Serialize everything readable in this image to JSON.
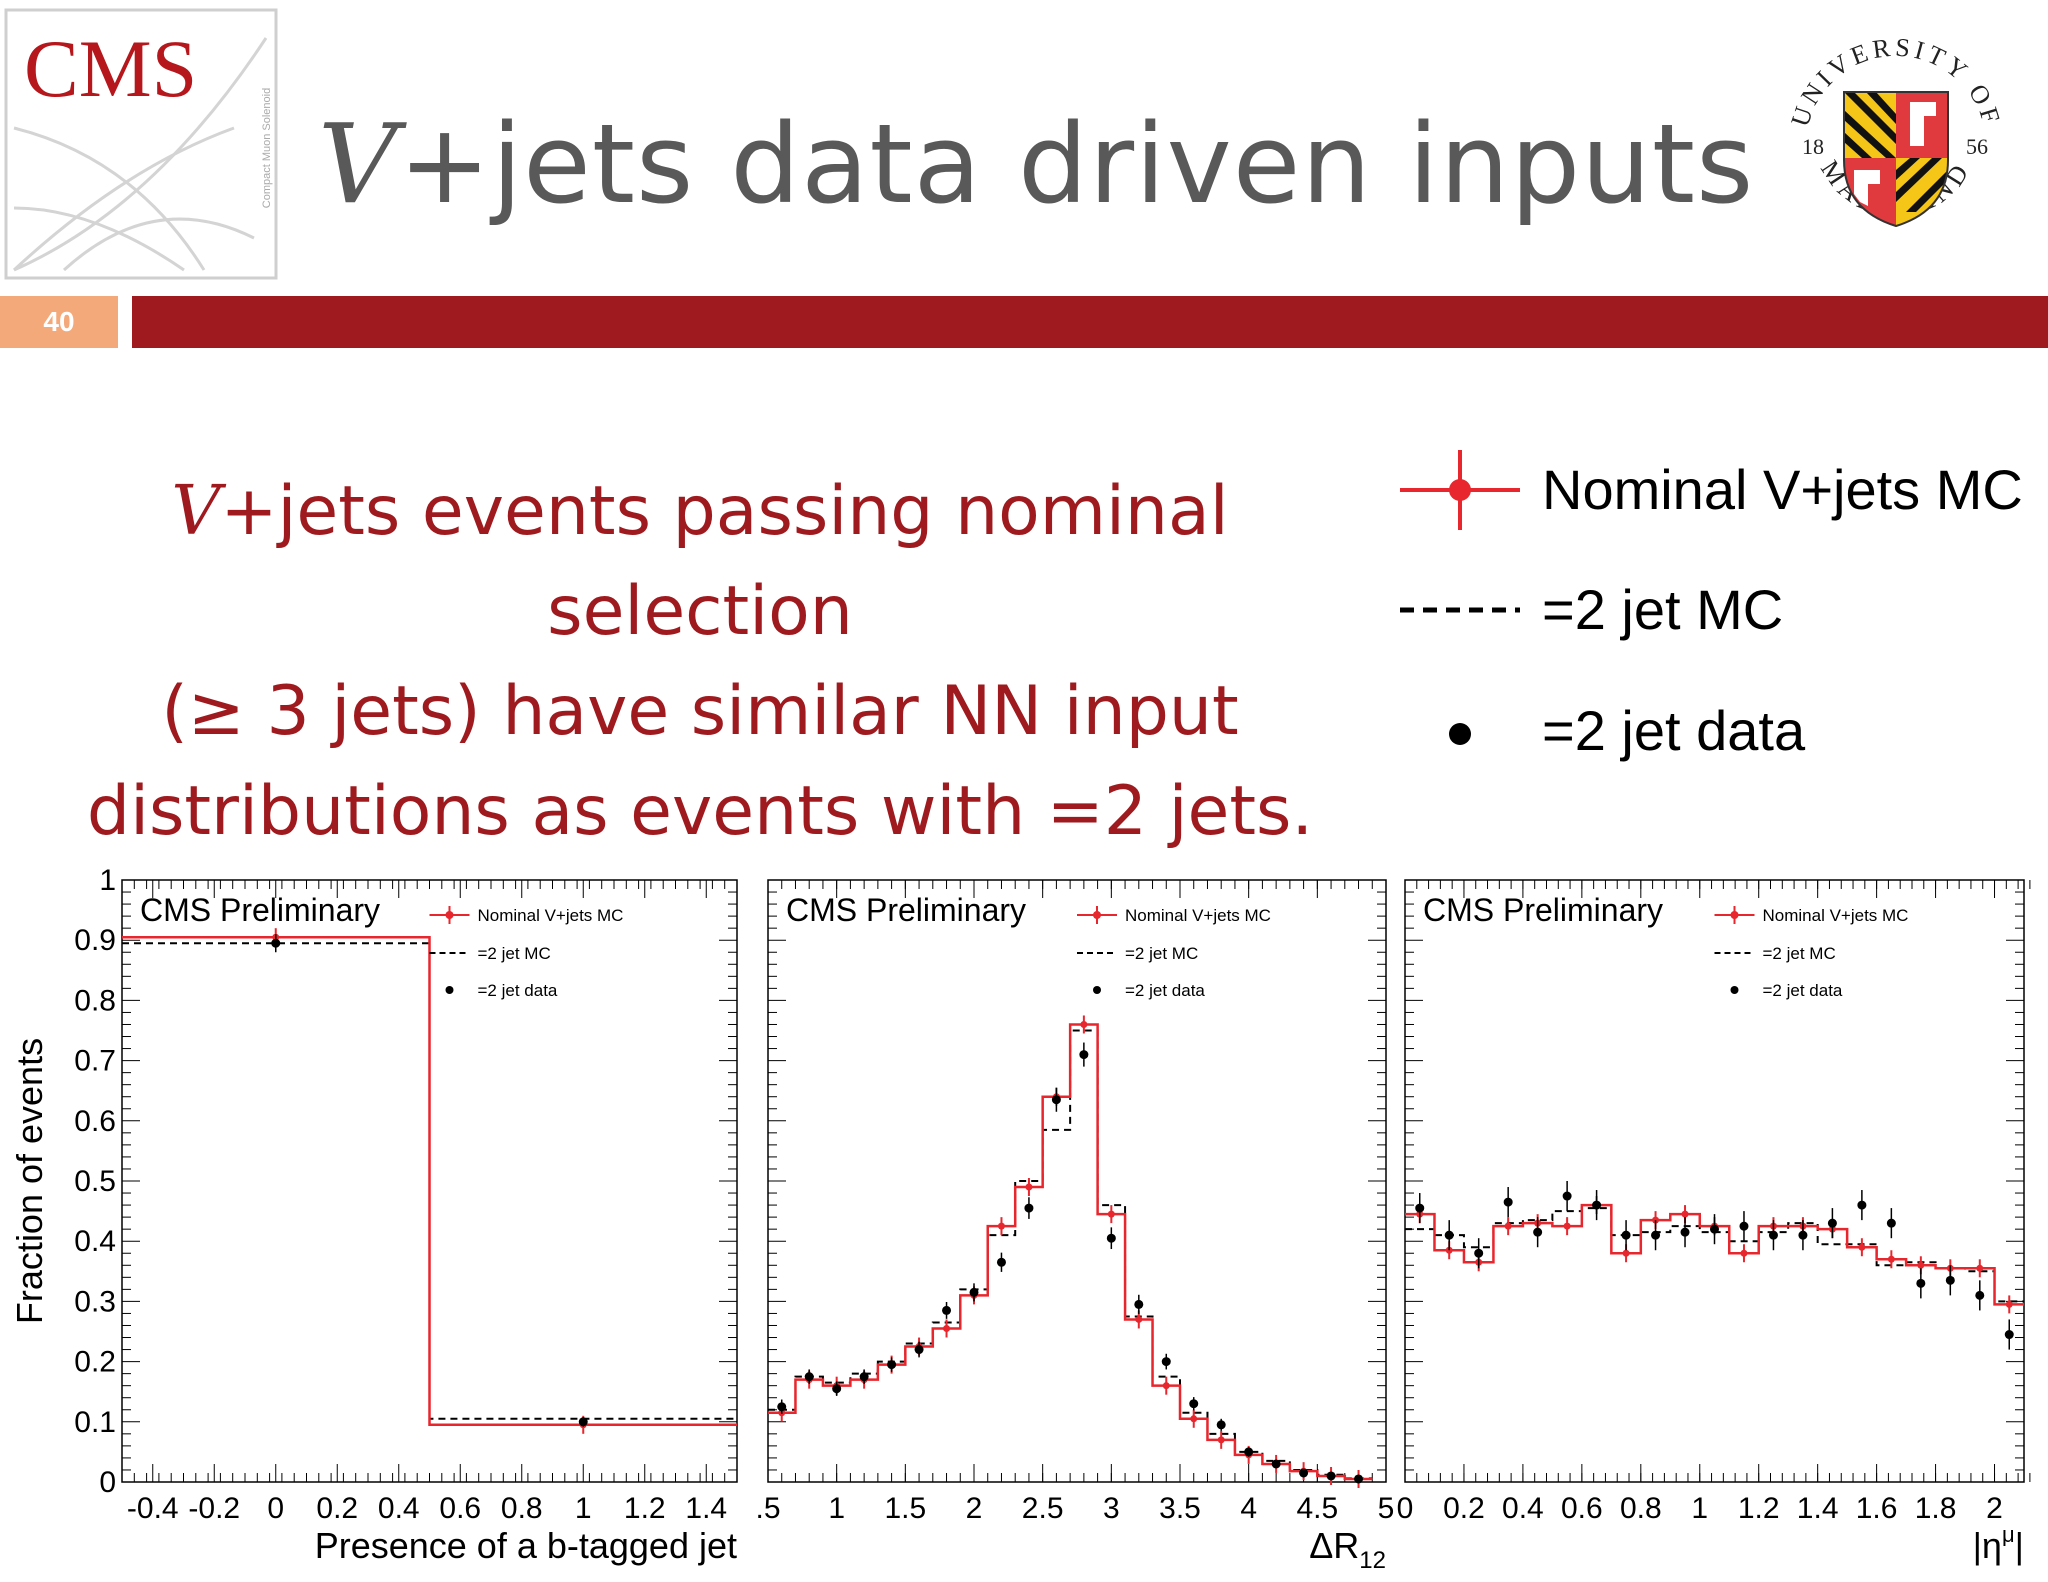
{
  "header": {
    "cms_logo_text": "CMS",
    "cms_logo_subtext": "Compact Muon Solenoid",
    "title_v": "V",
    "title_rest": "+jets data driven inputs",
    "slide_number": "40",
    "seal": {
      "top": "UNIVERSITY OF",
      "bottom": "MARYLAND",
      "year_left": "18",
      "year_right": "56"
    }
  },
  "summary": {
    "line1_v": "V",
    "line1_rest": "+jets events passing nominal selection",
    "line2": "(≥ 3 jets) have similar NN input",
    "line3": "distributions as events with =2 jets."
  },
  "big_legend": {
    "nominal": "Nominal V+jets MC",
    "dashed": "=2 jet MC",
    "data": "=2 jet data"
  },
  "colors": {
    "accent": "#9e1a1e",
    "slide_num_bg": "#f4a97a",
    "nominal": "#e8262d",
    "mc2": "#000000",
    "data": "#000000"
  },
  "chart_data": [
    {
      "type": "bar",
      "label": "CMS Preliminary",
      "xlabel": "Presence of a b-tagged jet",
      "ylabel": "Fraction of events",
      "xlim": [
        -0.5,
        1.5
      ],
      "ylim": [
        0,
        1
      ],
      "xticks": [
        "-0.4",
        "-0.2",
        "0",
        "0.2",
        "0.4",
        "0.6",
        "0.8",
        "1",
        "1.2",
        "1.4"
      ],
      "yticks": [
        "0",
        "0.1",
        "0.2",
        "0.3",
        "0.4",
        "0.5",
        "0.6",
        "0.7",
        "0.8",
        "0.9",
        "1"
      ],
      "legend": [
        "Nominal V+jets MC",
        "=2 jet MC",
        "=2 jet data"
      ],
      "bins": [
        -0.5,
        0.5,
        1.5
      ],
      "nominal": [
        0.905,
        0.095
      ],
      "mc2": [
        0.895,
        0.105
      ],
      "data_x": [
        0,
        1
      ],
      "data": [
        0.895,
        0.1
      ],
      "data_err": [
        0.015,
        0.008
      ]
    },
    {
      "type": "bar",
      "label": "CMS Preliminary",
      "xlabel": "ΔR",
      "xlabel_sub": "12",
      "xlim": [
        0.5,
        5
      ],
      "xticks": [
        ".5",
        "1",
        "1.5",
        "2",
        "2.5",
        "3",
        "3.5",
        "4",
        "4.5",
        "5"
      ],
      "legend": [
        "Nominal V+jets MC",
        "=2 jet MC",
        "=2 jet data"
      ],
      "bins": [
        0.5,
        0.7,
        0.9,
        1.1,
        1.3,
        1.5,
        1.7,
        1.9,
        2.1,
        2.3,
        2.5,
        2.7,
        2.9,
        3.1,
        3.3,
        3.5,
        3.7,
        3.9,
        4.1,
        4.3,
        4.5,
        4.7,
        4.9
      ],
      "nominal": [
        0.115,
        0.17,
        0.16,
        0.17,
        0.195,
        0.225,
        0.255,
        0.31,
        0.425,
        0.49,
        0.64,
        0.76,
        0.445,
        0.27,
        0.16,
        0.105,
        0.07,
        0.045,
        0.03,
        0.018,
        0.01,
        0.005
      ],
      "mc2": [
        0.12,
        0.175,
        0.165,
        0.18,
        0.2,
        0.23,
        0.265,
        0.32,
        0.41,
        0.5,
        0.585,
        0.75,
        0.46,
        0.275,
        0.175,
        0.115,
        0.08,
        0.05,
        0.035,
        0.02,
        0.012,
        0.006
      ],
      "data_x": [
        0.6,
        0.8,
        1.0,
        1.2,
        1.4,
        1.6,
        1.8,
        2.0,
        2.2,
        2.4,
        2.6,
        2.8,
        3.0,
        3.2,
        3.4,
        3.6,
        3.8,
        4.0,
        4.2,
        4.4,
        4.6,
        4.8
      ],
      "data": [
        0.125,
        0.175,
        0.155,
        0.175,
        0.195,
        0.22,
        0.285,
        0.315,
        0.365,
        0.455,
        0.635,
        0.71,
        0.405,
        0.295,
        0.2,
        0.13,
        0.095,
        0.05,
        0.03,
        0.015,
        0.01,
        0.005
      ],
      "data_err": [
        0.012,
        0.012,
        0.012,
        0.012,
        0.012,
        0.013,
        0.014,
        0.015,
        0.016,
        0.018,
        0.02,
        0.02,
        0.018,
        0.016,
        0.013,
        0.011,
        0.01,
        0.008,
        0.006,
        0.005,
        0.004,
        0.003
      ]
    },
    {
      "type": "bar",
      "label": "CMS Preliminary",
      "xlabel": "|η",
      "xlabel_sup": "μ",
      "xlabel_end": "|",
      "xlim": [
        0,
        2.1
      ],
      "xticks": [
        "0",
        "0.2",
        "0.4",
        "0.6",
        "0.8",
        "1",
        "1.2",
        "1.4",
        "1.6",
        "1.8",
        "2"
      ],
      "legend": [
        "Nominal V+jets MC",
        "=2 jet MC",
        "=2 jet data"
      ],
      "bins": [
        0.0,
        0.1,
        0.2,
        0.3,
        0.4,
        0.5,
        0.6,
        0.7,
        0.8,
        0.9,
        1.0,
        1.1,
        1.2,
        1.3,
        1.4,
        1.5,
        1.6,
        1.7,
        1.8,
        1.9,
        2.0,
        2.1
      ],
      "nominal": [
        0.445,
        0.385,
        0.365,
        0.425,
        0.43,
        0.425,
        0.46,
        0.38,
        0.435,
        0.445,
        0.425,
        0.38,
        0.425,
        0.425,
        0.42,
        0.39,
        0.37,
        0.36,
        0.355,
        0.355,
        0.295
      ],
      "mc2": [
        0.42,
        0.41,
        0.39,
        0.43,
        0.435,
        0.45,
        0.455,
        0.41,
        0.415,
        0.425,
        0.415,
        0.4,
        0.415,
        0.43,
        0.395,
        0.395,
        0.36,
        0.365,
        0.355,
        0.35,
        0.3
      ],
      "data_x": [
        0.05,
        0.15,
        0.25,
        0.35,
        0.45,
        0.55,
        0.65,
        0.75,
        0.85,
        0.95,
        1.05,
        1.15,
        1.25,
        1.35,
        1.45,
        1.55,
        1.65,
        1.75,
        1.85,
        1.95,
        2.05
      ],
      "data": [
        0.455,
        0.41,
        0.38,
        0.465,
        0.415,
        0.475,
        0.46,
        0.41,
        0.41,
        0.415,
        0.42,
        0.425,
        0.41,
        0.41,
        0.43,
        0.46,
        0.43,
        0.33,
        0.335,
        0.31,
        0.245
      ],
      "data_err": [
        0.025,
        0.025,
        0.025,
        0.025,
        0.025,
        0.025,
        0.025,
        0.025,
        0.025,
        0.025,
        0.025,
        0.025,
        0.025,
        0.025,
        0.025,
        0.025,
        0.025,
        0.025,
        0.025,
        0.025,
        0.025
      ]
    }
  ]
}
